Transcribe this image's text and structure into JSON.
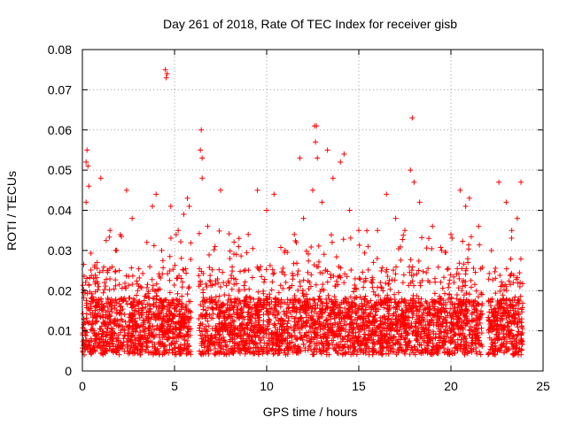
{
  "chart_data": {
    "type": "scatter",
    "title": "Day 261 of 2018, Rate Of TEC Index for receiver gisb",
    "xlabel": "GPS time / hours",
    "ylabel": "ROTI / TECUs",
    "xlim": [
      0,
      25
    ],
    "ylim": [
      0,
      0.08
    ],
    "xticks": [
      0,
      5,
      10,
      15,
      20,
      25
    ],
    "yticks": [
      0,
      0.01,
      0.02,
      0.03,
      0.04,
      0.05,
      0.06,
      0.07,
      0.08
    ],
    "xtick_labels": [
      "0",
      "5",
      "10",
      "15",
      "20",
      "25"
    ],
    "ytick_labels": [
      "0",
      "0.01",
      "0.02",
      "0.03",
      "0.04",
      "0.05",
      "0.06",
      "0.07",
      "0.08"
    ],
    "grid": true,
    "marker": "plus",
    "color": "#ff0000",
    "data_gaps_hours": [
      [
        5.9,
        6.3
      ],
      [
        21.7,
        22.0
      ]
    ],
    "series": [
      {
        "points": [
          [
            0.1,
            0.012
          ],
          [
            0.2,
            0.052
          ],
          [
            0.25,
            0.055
          ],
          [
            0.3,
            0.051
          ],
          [
            0.35,
            0.046
          ],
          [
            0.2,
            0.042
          ],
          [
            0.5,
            0.018
          ],
          [
            0.8,
            0.027
          ],
          [
            1.0,
            0.048
          ],
          [
            1.2,
            0.022
          ],
          [
            1.5,
            0.035
          ],
          [
            1.8,
            0.03
          ],
          [
            2.0,
            0.025
          ],
          [
            2.4,
            0.045
          ],
          [
            2.7,
            0.038
          ],
          [
            3.0,
            0.02
          ],
          [
            3.5,
            0.032
          ],
          [
            3.8,
            0.041
          ],
          [
            4.0,
            0.044
          ],
          [
            4.3,
            0.03
          ],
          [
            4.5,
            0.075
          ],
          [
            4.55,
            0.073
          ],
          [
            4.6,
            0.074
          ],
          [
            4.8,
            0.041
          ],
          [
            5.2,
            0.035
          ],
          [
            5.5,
            0.039
          ],
          [
            5.7,
            0.043
          ],
          [
            5.8,
            0.041
          ],
          [
            6.4,
            0.055
          ],
          [
            6.45,
            0.06
          ],
          [
            6.5,
            0.053
          ],
          [
            6.5,
            0.048
          ],
          [
            6.8,
            0.036
          ],
          [
            7.2,
            0.031
          ],
          [
            7.5,
            0.045
          ],
          [
            8.0,
            0.028
          ],
          [
            8.5,
            0.033
          ],
          [
            9.0,
            0.034
          ],
          [
            9.5,
            0.045
          ],
          [
            10.0,
            0.04
          ],
          [
            10.4,
            0.044
          ],
          [
            11.0,
            0.03
          ],
          [
            11.5,
            0.034
          ],
          [
            11.8,
            0.053
          ],
          [
            12.0,
            0.038
          ],
          [
            12.5,
            0.045
          ],
          [
            12.6,
            0.061
          ],
          [
            12.65,
            0.057
          ],
          [
            12.7,
            0.061
          ],
          [
            12.75,
            0.053
          ],
          [
            13.0,
            0.042
          ],
          [
            13.3,
            0.055
          ],
          [
            13.6,
            0.048
          ],
          [
            14.0,
            0.052
          ],
          [
            14.2,
            0.054
          ],
          [
            14.5,
            0.04
          ],
          [
            15.0,
            0.035
          ],
          [
            15.5,
            0.031
          ],
          [
            16.0,
            0.028
          ],
          [
            16.5,
            0.044
          ],
          [
            17.0,
            0.038
          ],
          [
            17.5,
            0.035
          ],
          [
            17.8,
            0.05
          ],
          [
            17.9,
            0.063
          ],
          [
            18.0,
            0.047
          ],
          [
            18.3,
            0.042
          ],
          [
            18.8,
            0.033
          ],
          [
            19.0,
            0.036
          ],
          [
            19.5,
            0.03
          ],
          [
            20.0,
            0.034
          ],
          [
            20.5,
            0.045
          ],
          [
            20.8,
            0.041
          ],
          [
            21.0,
            0.043
          ],
          [
            21.5,
            0.036
          ],
          [
            22.2,
            0.03
          ],
          [
            22.6,
            0.047
          ],
          [
            23.0,
            0.042
          ],
          [
            23.3,
            0.035
          ],
          [
            23.6,
            0.038
          ],
          [
            23.8,
            0.047
          ]
        ]
      }
    ]
  }
}
